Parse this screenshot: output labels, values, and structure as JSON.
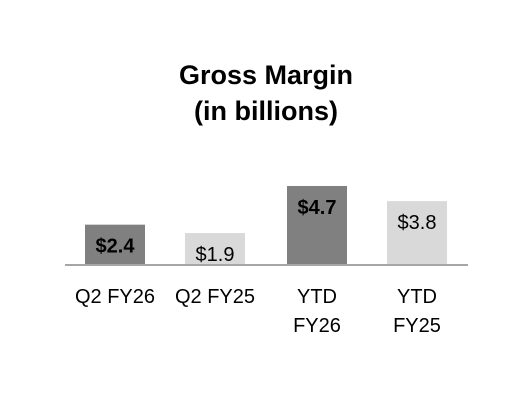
{
  "chart_data": {
    "type": "bar",
    "title": [
      "Gross Margin",
      "(in billions)"
    ],
    "categories": [
      [
        "Q2 FY26"
      ],
      [
        "Q2 FY25"
      ],
      [
        "YTD",
        "FY26"
      ],
      [
        "YTD",
        "FY25"
      ]
    ],
    "values": [
      2.4,
      1.9,
      4.7,
      3.8
    ],
    "data_labels": [
      "$2.4",
      "$1.9",
      "$4.7",
      "$3.8"
    ],
    "bold_labels": [
      true,
      false,
      true,
      false
    ],
    "bar_colors": [
      "#808080",
      "#d9d9d9",
      "#808080",
      "#d9d9d9"
    ],
    "baseline_color": "#a6a6a6",
    "ylim": [
      0,
      4.7
    ],
    "grid": false,
    "legend": "none",
    "xlabel": "",
    "ylabel": ""
  }
}
